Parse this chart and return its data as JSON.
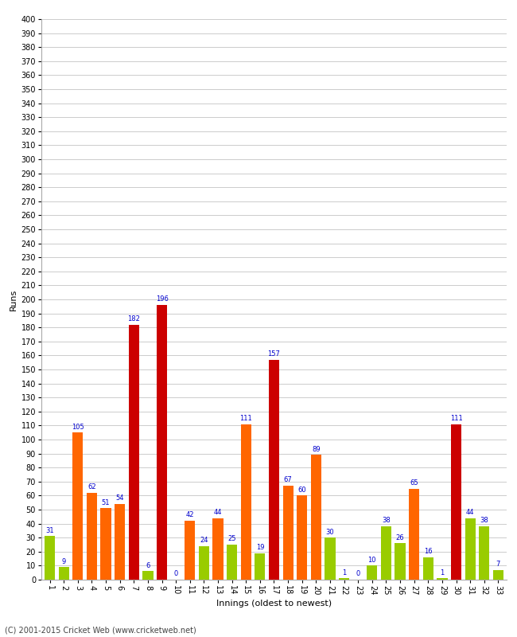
{
  "xlabel": "Innings (oldest to newest)",
  "ylabel": "Runs",
  "footer": "(C) 2001-2015 Cricket Web (www.cricketweb.net)",
  "ylim": [
    0,
    400
  ],
  "ytick_step": 10,
  "innings": [
    {
      "num": "1",
      "value": 31,
      "color": "#99cc00"
    },
    {
      "num": "2",
      "value": 9,
      "color": "#99cc00"
    },
    {
      "num": "3",
      "value": 105,
      "color": "#ff6600"
    },
    {
      "num": "4",
      "value": 62,
      "color": "#ff6600"
    },
    {
      "num": "5",
      "value": 51,
      "color": "#ff6600"
    },
    {
      "num": "6",
      "value": 54,
      "color": "#ff6600"
    },
    {
      "num": "7",
      "value": 182,
      "color": "#cc0000"
    },
    {
      "num": "8",
      "value": 6,
      "color": "#99cc00"
    },
    {
      "num": "9",
      "value": 196,
      "color": "#cc0000"
    },
    {
      "num": "10",
      "value": 0,
      "color": "#99cc00"
    },
    {
      "num": "11",
      "value": 42,
      "color": "#ff6600"
    },
    {
      "num": "12",
      "value": 24,
      "color": "#99cc00"
    },
    {
      "num": "13",
      "value": 44,
      "color": "#ff6600"
    },
    {
      "num": "14",
      "value": 25,
      "color": "#99cc00"
    },
    {
      "num": "15",
      "value": 111,
      "color": "#ff6600"
    },
    {
      "num": "16",
      "value": 19,
      "color": "#99cc00"
    },
    {
      "num": "17",
      "value": 157,
      "color": "#cc0000"
    },
    {
      "num": "18",
      "value": 67,
      "color": "#ff6600"
    },
    {
      "num": "19",
      "value": 60,
      "color": "#ff6600"
    },
    {
      "num": "20",
      "value": 89,
      "color": "#ff6600"
    },
    {
      "num": "21",
      "value": 30,
      "color": "#99cc00"
    },
    {
      "num": "22",
      "value": 1,
      "color": "#99cc00"
    },
    {
      "num": "23",
      "value": 0,
      "color": "#99cc00"
    },
    {
      "num": "24",
      "value": 10,
      "color": "#99cc00"
    },
    {
      "num": "25",
      "value": 38,
      "color": "#99cc00"
    },
    {
      "num": "26",
      "value": 26,
      "color": "#99cc00"
    },
    {
      "num": "27",
      "value": 65,
      "color": "#ff6600"
    },
    {
      "num": "28",
      "value": 16,
      "color": "#99cc00"
    },
    {
      "num": "29",
      "value": 1,
      "color": "#99cc00"
    },
    {
      "num": "30",
      "value": 111,
      "color": "#cc0000"
    },
    {
      "num": "31",
      "value": 44,
      "color": "#99cc00"
    },
    {
      "num": "32",
      "value": 38,
      "color": "#99cc00"
    },
    {
      "num": "33",
      "value": 7,
      "color": "#99cc00"
    }
  ],
  "bg_color": "#ffffff",
  "grid_color": "#cccccc",
  "label_color": "#0000cc",
  "bar_width": 0.75,
  "label_fontsize": 6.0,
  "axis_label_fontsize": 8,
  "tick_fontsize": 7,
  "ylabel_fontsize": 8
}
